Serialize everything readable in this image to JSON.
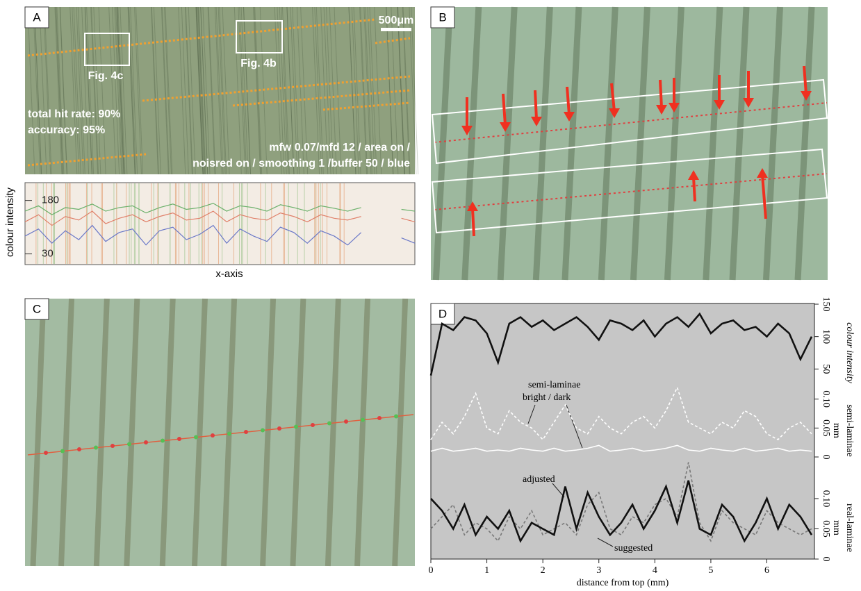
{
  "panels": {
    "a": {
      "label": "A",
      "scale_bar": "500μm",
      "boxes": [
        "Fig. 4c",
        "Fig. 4b"
      ],
      "stats": [
        "total hit rate: 90%",
        "accuracy: 95%"
      ],
      "settings": [
        "mfw 0.07/mfd 12 / area on /",
        "noisred on / smoothing 1 /buffer 50 / blue"
      ]
    },
    "b": {
      "label": "B"
    },
    "c": {
      "label": "C"
    },
    "d": {
      "label": "D"
    }
  },
  "chart_data": [
    {
      "type": "line",
      "y_label": "colour intensity",
      "x_label": "x-axis",
      "ylim": [
        0,
        230
      ],
      "yticks": [
        30,
        180
      ],
      "series": [
        {
          "color": "#e0806a",
          "values": [
            120,
            140,
            110,
            135,
            125,
            150,
            115,
            130,
            140,
            120,
            135,
            145,
            125,
            130,
            150,
            120,
            140,
            130,
            125,
            145,
            135,
            120,
            140,
            130,
            125,
            135,
            null,
            null,
            130,
            120
          ]
        },
        {
          "color": "#6ab06a",
          "values": [
            150,
            165,
            140,
            160,
            155,
            170,
            150,
            160,
            165,
            145,
            160,
            170,
            155,
            160,
            172,
            150,
            165,
            160,
            150,
            168,
            160,
            150,
            165,
            158,
            150,
            160,
            null,
            null,
            155,
            150
          ]
        },
        {
          "color": "#6a78c8",
          "values": [
            80,
            100,
            60,
            95,
            70,
            110,
            65,
            90,
            100,
            55,
            95,
            105,
            70,
            85,
            110,
            60,
            100,
            80,
            65,
            105,
            90,
            60,
            95,
            80,
            55,
            90,
            null,
            null,
            75,
            60
          ]
        }
      ]
    },
    {
      "type": "line",
      "x_label": "distance from top (mm)",
      "x": [
        0,
        0.2,
        0.4,
        0.6,
        0.8,
        1,
        1.2,
        1.4,
        1.6,
        1.8,
        2,
        2.2,
        2.4,
        2.6,
        2.8,
        3,
        3.2,
        3.4,
        3.6,
        3.8,
        4,
        4.2,
        4.4,
        4.6,
        4.8,
        5,
        5.2,
        5.4,
        5.6,
        5.8,
        6,
        6.2,
        6.4,
        6.6,
        6.8
      ],
      "xlim": [
        0,
        6.85
      ],
      "xticks": [
        0,
        1,
        2,
        3,
        4,
        5,
        6
      ],
      "annotations": [
        "semi-laminae",
        "bright  /  dark",
        "adjusted",
        "suggested"
      ],
      "axes": [
        {
          "title": "colour intensity",
          "ylim": [
            0,
            150
          ],
          "yticks": [
            50,
            100,
            150
          ],
          "series": [
            {
              "color": "#111111",
              "values": [
                40,
                120,
                110,
                130,
                125,
                105,
                60,
                120,
                130,
                115,
                125,
                110,
                120,
                130,
                115,
                95,
                125,
                120,
                110,
                125,
                100,
                120,
                130,
                115,
                135,
                105,
                120,
                125,
                110,
                115,
                100,
                120,
                105,
                65,
                100
              ]
            }
          ]
        },
        {
          "title": "semi-laminae",
          "unit": "mm",
          "ylim": [
            0,
            0.15
          ],
          "yticks": [
            0,
            0.05,
            {
              "value": 0.1,
              "label": "0.10"
            }
          ],
          "series": [
            {
              "color": "#ffffff",
              "dashed": true,
              "values": [
                0.03,
                0.06,
                0.04,
                0.07,
                0.11,
                0.05,
                0.04,
                0.08,
                0.06,
                0.05,
                0.03,
                0.06,
                0.09,
                0.05,
                0.04,
                0.07,
                0.05,
                0.04,
                0.06,
                0.07,
                0.05,
                0.08,
                0.12,
                0.06,
                0.05,
                0.04,
                0.06,
                0.05,
                0.08,
                0.07,
                0.04,
                0.03,
                0.05,
                0.06,
                0.04
              ]
            },
            {
              "color": "#ffffff",
              "dashed": false,
              "values": [
                0.01,
                0.015,
                0.01,
                0.012,
                0.015,
                0.01,
                0.012,
                0.01,
                0.015,
                0.012,
                0.01,
                0.015,
                0.01,
                0.012,
                0.015,
                0.02,
                0.01,
                0.012,
                0.015,
                0.01,
                0.012,
                0.015,
                0.02,
                0.012,
                0.01,
                0.015,
                0.012,
                0.01,
                0.015,
                0.01,
                0.012,
                0.015,
                0.01,
                0.012,
                0.01
              ]
            }
          ]
        },
        {
          "title": "real-laminae",
          "unit": "mm",
          "ylim": [
            0,
            0.17
          ],
          "yticks": [
            0,
            0.05,
            {
              "value": 0.1,
              "label": "0.10"
            }
          ],
          "series": [
            {
              "color": "#777777",
              "dashed": true,
              "values": [
                0.05,
                0.07,
                0.09,
                0.04,
                0.06,
                0.05,
                0.03,
                0.07,
                0.05,
                0.08,
                0.04,
                0.05,
                0.06,
                0.04,
                0.09,
                0.11,
                0.05,
                0.04,
                0.07,
                0.06,
                0.09,
                0.1,
                0.07,
                0.16,
                0.06,
                0.03,
                0.08,
                0.06,
                0.05,
                0.04,
                0.08,
                0.06,
                0.05,
                0.04,
                0.05
              ]
            },
            {
              "color": "#111111",
              "dashed": false,
              "values": [
                0.1,
                0.08,
                0.05,
                0.09,
                0.04,
                0.07,
                0.05,
                0.08,
                0.03,
                0.06,
                0.05,
                0.04,
                0.12,
                0.05,
                0.11,
                0.07,
                0.04,
                0.06,
                0.09,
                0.05,
                0.08,
                0.12,
                0.06,
                0.13,
                0.05,
                0.04,
                0.09,
                0.07,
                0.03,
                0.06,
                0.1,
                0.05,
                0.09,
                0.07,
                0.04
              ]
            }
          ]
        }
      ]
    }
  ]
}
